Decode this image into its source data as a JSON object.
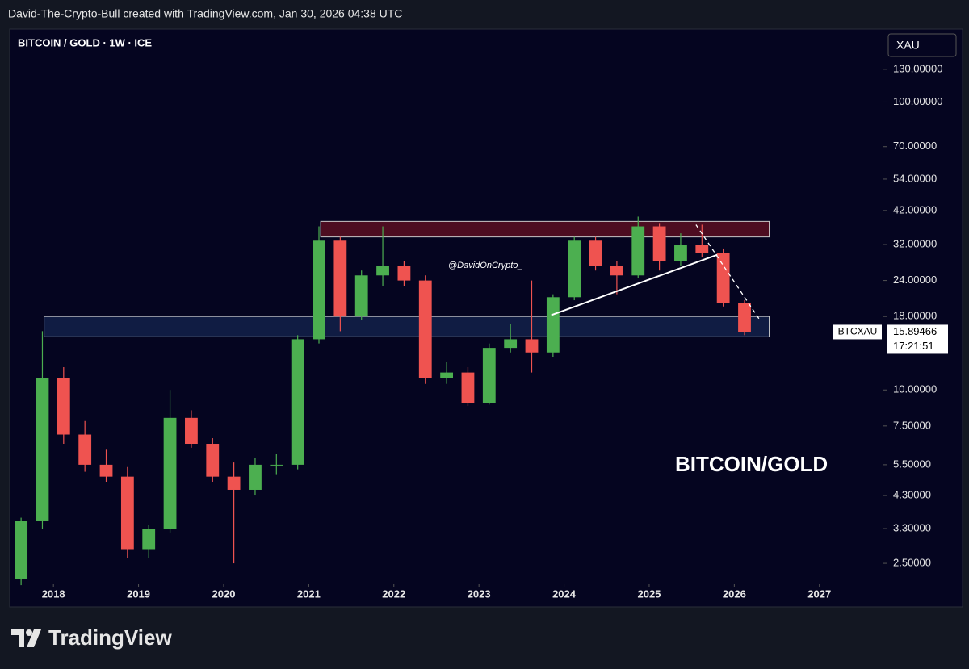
{
  "header": {
    "text": "David-The-Crypto-Bull created with TradingView.com, Jan 30, 2026 04:38 UTC"
  },
  "footer": {
    "brand": "TradingView"
  },
  "chart_data": {
    "type": "candlestick",
    "title": "BITCOIN / GOLD · 1W · ICE",
    "currency": "XAU",
    "annotations": [
      "@DavidOnCrypto_",
      "BITCOIN/GOLD"
    ],
    "log_scale": true,
    "up_color": "#4caf50",
    "down_color": "#ef5350",
    "x": [
      2017.5,
      2017.75,
      2018.0,
      2018.25,
      2018.5,
      2018.75,
      2019.0,
      2019.25,
      2019.5,
      2019.75,
      2020.0,
      2020.25,
      2020.5,
      2020.75,
      2021.0,
      2021.25,
      2021.5,
      2021.75,
      2022.0,
      2022.25,
      2022.5,
      2022.75,
      2023.0,
      2023.25,
      2023.5,
      2023.75,
      2024.0,
      2024.25,
      2024.5,
      2024.75,
      2025.0,
      2025.25,
      2025.5,
      2025.75,
      2026.0
    ],
    "open": [
      2.2,
      3.5,
      11,
      7,
      5.5,
      5,
      2.8,
      3.3,
      8,
      6.5,
      5,
      4.5,
      5.5,
      5.5,
      15,
      33,
      18,
      25,
      27,
      24,
      11,
      11.5,
      9,
      14,
      15,
      13.5,
      21,
      33,
      27,
      25,
      37,
      28,
      32,
      30,
      20
    ],
    "high": [
      3.6,
      16,
      12,
      7.8,
      6.2,
      5.4,
      3.4,
      10,
      8.5,
      6.8,
      5.6,
      5.8,
      6.0,
      15.5,
      37,
      34,
      26,
      37,
      28,
      25,
      12.5,
      12,
      14.5,
      17,
      24,
      21.5,
      34,
      34,
      28,
      40,
      38,
      35,
      37.5,
      31,
      20.5
    ],
    "low": [
      2.1,
      3.3,
      6.5,
      5.2,
      4.8,
      2.6,
      2.6,
      3.2,
      6.3,
      4.8,
      2.5,
      4.3,
      5.1,
      5.3,
      14.5,
      16,
      17.5,
      23,
      23,
      10.5,
      10.5,
      8.8,
      8.9,
      13.5,
      11.5,
      13,
      20.5,
      26,
      21.5,
      24.5,
      26,
      27,
      29,
      19.5,
      15.5
    ],
    "close": [
      3.5,
      11,
      7,
      5.5,
      5,
      2.8,
      3.3,
      8,
      6.5,
      5,
      4.5,
      5.5,
      5.5,
      15,
      33,
      18,
      25,
      27,
      24,
      11,
      11.5,
      9,
      14,
      15,
      13.5,
      21,
      33,
      27,
      25,
      37,
      28,
      32,
      30,
      20,
      15.89466
    ],
    "last_price": 15.89466,
    "last_label": "BTCXAU",
    "countdown": "17:21:51",
    "zones": [
      {
        "color": "#5a0f22",
        "x": [
          2021.14,
          2026.41
        ],
        "y": [
          34,
          38.5
        ]
      },
      {
        "color": "#13214a",
        "x": [
          2017.89,
          2026.41
        ],
        "y": [
          15.3,
          18
        ]
      }
    ],
    "trend_lines": [
      {
        "color": "#ffffff",
        "dashed": false,
        "x": [
          2023.85,
          2025.8
        ],
        "y": [
          18.2,
          29.5
        ]
      },
      {
        "color": "#ffffff",
        "dashed": true,
        "x": [
          2025.55,
          2026.3
        ],
        "y": [
          37.5,
          17.5
        ]
      }
    ],
    "xlim": [
      2017.505,
      2027.733
    ],
    "ylim": [
      2.17,
      177
    ],
    "xticks": [
      2018,
      2019,
      2020,
      2021,
      2022,
      2023,
      2024,
      2025,
      2026,
      2027
    ],
    "yticks": [
      {
        "value": 130,
        "label": "130.00000"
      },
      {
        "value": 100,
        "label": "100.00000"
      },
      {
        "value": 70,
        "label": "70.00000"
      },
      {
        "value": 54,
        "label": "54.00000"
      },
      {
        "value": 42,
        "label": "42.00000"
      },
      {
        "value": 32,
        "label": "32.00000"
      },
      {
        "value": 24,
        "label": "24.00000"
      },
      {
        "value": 18,
        "label": "18.00000"
      },
      {
        "value": 10,
        "label": "10.00000"
      },
      {
        "value": 7.5,
        "label": "7.50000"
      },
      {
        "value": 5.5,
        "label": "5.50000"
      },
      {
        "value": 4.3,
        "label": "4.30000"
      },
      {
        "value": 3.3,
        "label": "3.30000"
      },
      {
        "value": 2.5,
        "label": "2.50000"
      }
    ]
  }
}
